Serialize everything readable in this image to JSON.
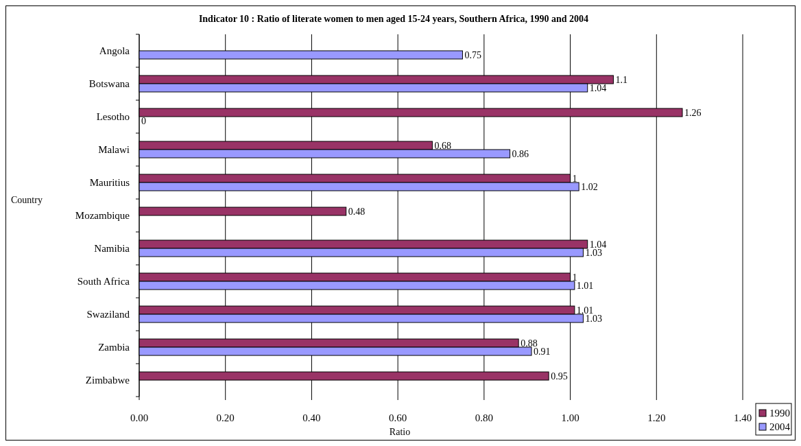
{
  "chart_data": {
    "type": "bar",
    "orientation": "horizontal",
    "title": "Indicator 10 : Ratio of literate women to men aged 15-24 years, Southern Africa, 1990 and 2004",
    "xlabel": "Ratio",
    "ylabel": "Country",
    "categories": [
      "Angola",
      "Botswana",
      "Lesotho",
      "Malawi",
      "Mauritius",
      "Mozambique",
      "Namibia",
      "South Africa",
      "Swaziland",
      "Zambia",
      "Zimbabwe"
    ],
    "series": [
      {
        "name": "1990",
        "color": "#993366",
        "values": [
          null,
          1.1,
          1.26,
          0.68,
          1,
          0.48,
          1.04,
          1,
          1.01,
          0.88,
          0.95
        ]
      },
      {
        "name": "2004",
        "color": "#9999ff",
        "values": [
          0.75,
          1.04,
          0,
          0.86,
          1.02,
          null,
          1.03,
          1.01,
          1.03,
          0.91,
          null
        ]
      }
    ],
    "xlim": [
      0,
      1.4
    ],
    "xticks": [
      {
        "value": 0,
        "label": "0.00"
      },
      {
        "value": 0.2,
        "label": "0.20"
      },
      {
        "value": 0.4,
        "label": "0.40"
      },
      {
        "value": 0.6,
        "label": "0.60"
      },
      {
        "value": 0.8,
        "label": "0.80"
      },
      {
        "value": 1,
        "label": "1.00"
      },
      {
        "value": 1.2,
        "label": "1.20"
      },
      {
        "value": 1.4,
        "label": "1.40"
      }
    ],
    "grid": "x",
    "data_labels": true,
    "legend": "bottom right"
  }
}
